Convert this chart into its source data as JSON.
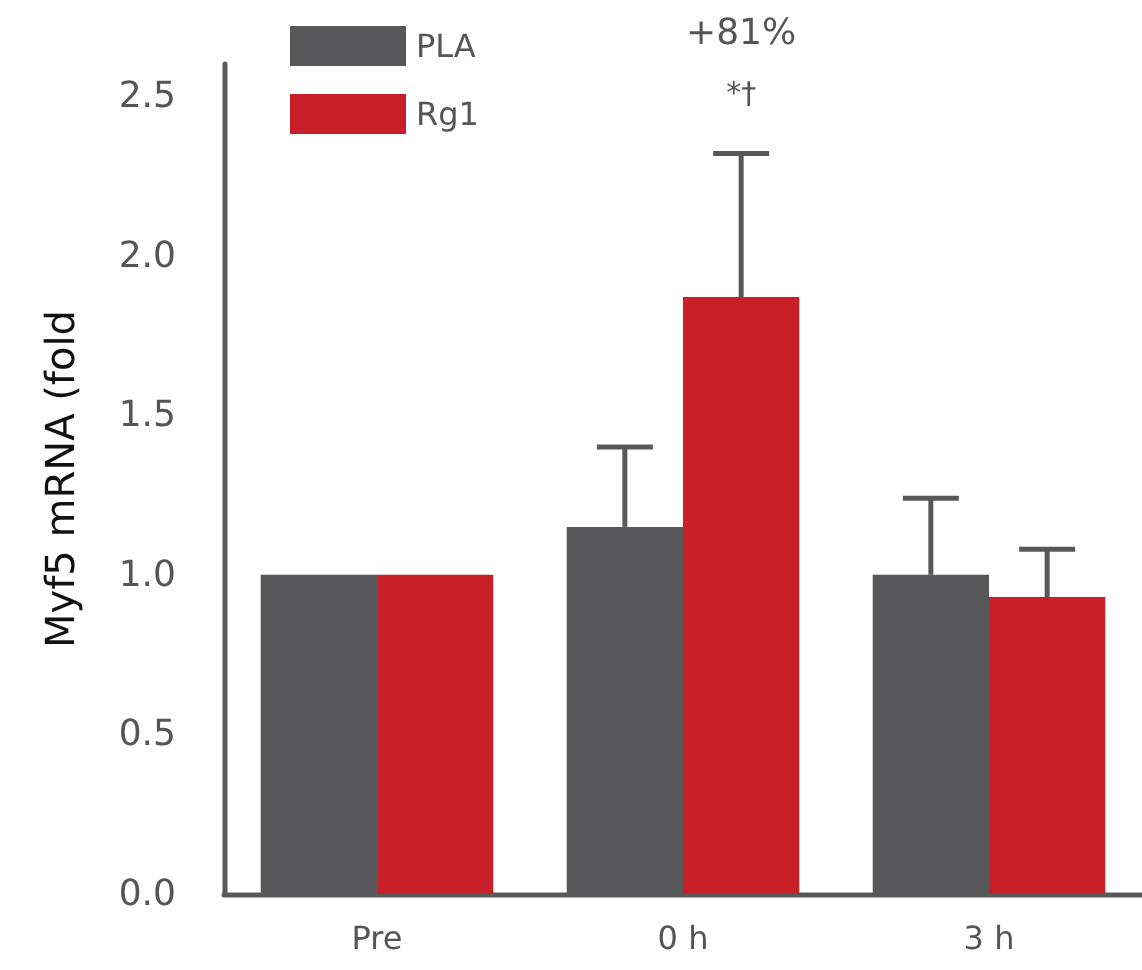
{
  "chart_data": {
    "type": "bar",
    "ylabel": "Myf5 mRNA (fold",
    "categories": [
      "Pre",
      "0 h",
      "3 h"
    ],
    "series": [
      {
        "name": "PLA",
        "color": "#58585a",
        "values": [
          1.0,
          1.15,
          1.0
        ],
        "errors": [
          null,
          [
            1.15,
            1.4
          ],
          [
            1.0,
            1.24
          ]
        ]
      },
      {
        "name": "Rg1",
        "color": "#c91f28",
        "values": [
          1.0,
          1.87,
          0.93
        ],
        "errors": [
          null,
          [
            1.87,
            2.32
          ],
          [
            0.93,
            1.08
          ]
        ]
      }
    ],
    "ylim": [
      0,
      2.6
    ],
    "yticks": [
      {
        "value": 0,
        "label": "0.0"
      },
      0.5,
      {
        "value": 1,
        "label": "1.0"
      },
      1.5,
      {
        "value": 2,
        "label": "2.0"
      },
      2.5
    ],
    "annotations": [
      "+81%",
      "*†"
    ],
    "grid": false,
    "legend": "top left"
  }
}
